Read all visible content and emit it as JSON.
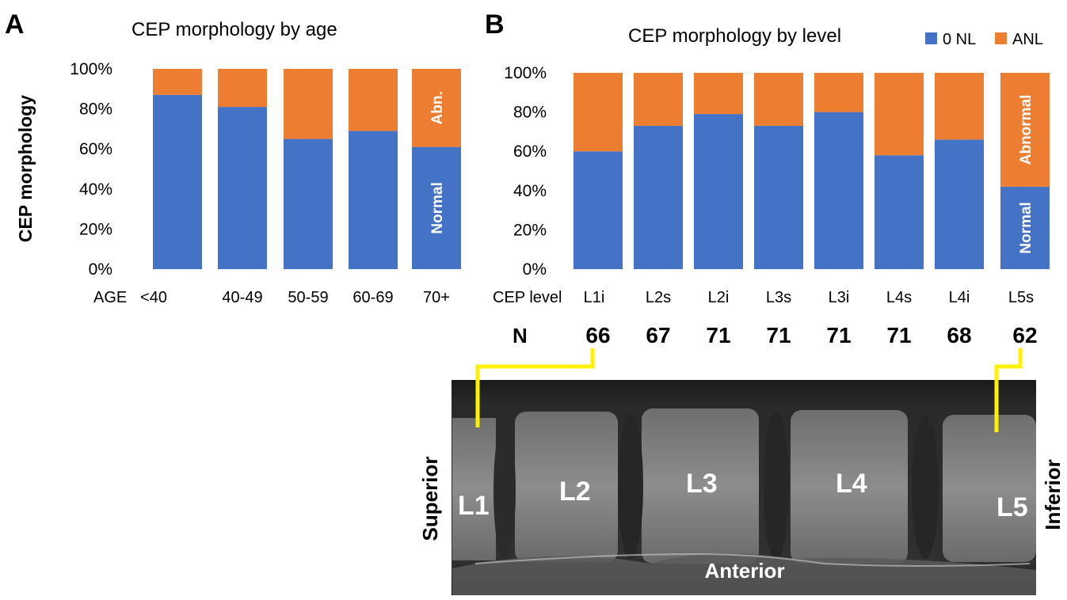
{
  "panel_a": {
    "letter": "A"
  },
  "panel_b": {
    "letter": "B"
  },
  "colors": {
    "normal": "#4472C4",
    "abnormal": "#ED7D31",
    "connector": "#FFF200"
  },
  "chart_data": [
    {
      "type": "bar",
      "stacked": true,
      "title": "CEP morphology by age",
      "ylabel": "CEP morphology",
      "xlabel": "AGE",
      "categories": [
        "<40",
        "40-49",
        "50-59",
        "60-69",
        "70+"
      ],
      "series": [
        {
          "name": "Normal",
          "values": [
            87,
            81,
            65,
            69,
            61
          ]
        },
        {
          "name": "Abn.",
          "values": [
            13,
            19,
            35,
            31,
            39
          ]
        }
      ],
      "yticks": [
        "0%",
        "20%",
        "40%",
        "60%",
        "80%",
        "100%"
      ],
      "ylim": [
        0,
        100
      ],
      "bar_labels": {
        "normal": "Normal",
        "abnormal": "Abn."
      }
    },
    {
      "type": "bar",
      "stacked": true,
      "title": "CEP morphology by level",
      "xlabel": "CEP level",
      "categories": [
        "L1i",
        "L2s",
        "L2i",
        "L3s",
        "L3i",
        "L4s",
        "L4i",
        "L5s"
      ],
      "series": [
        {
          "name": "0 NL",
          "values": [
            60,
            73,
            79,
            73,
            80,
            58,
            66,
            42
          ]
        },
        {
          "name": "ANL",
          "values": [
            40,
            27,
            21,
            27,
            20,
            42,
            34,
            58
          ]
        }
      ],
      "legend": [
        "0 NL",
        "ANL"
      ],
      "yticks": [
        "0%",
        "20%",
        "40%",
        "60%",
        "80%",
        "100%"
      ],
      "ylim": [
        0,
        100
      ],
      "n_label": "N",
      "n_values": [
        "66",
        "67",
        "71",
        "71",
        "71",
        "71",
        "68",
        "62"
      ],
      "bar_labels": {
        "normal": "Normal",
        "abnormal": "Abnormal"
      }
    }
  ],
  "mri": {
    "vertebrae": [
      "L1",
      "L2",
      "L3",
      "L4",
      "L5"
    ],
    "left_label": "Superior",
    "right_label": "Inferior",
    "bottom_label": "Anterior"
  }
}
